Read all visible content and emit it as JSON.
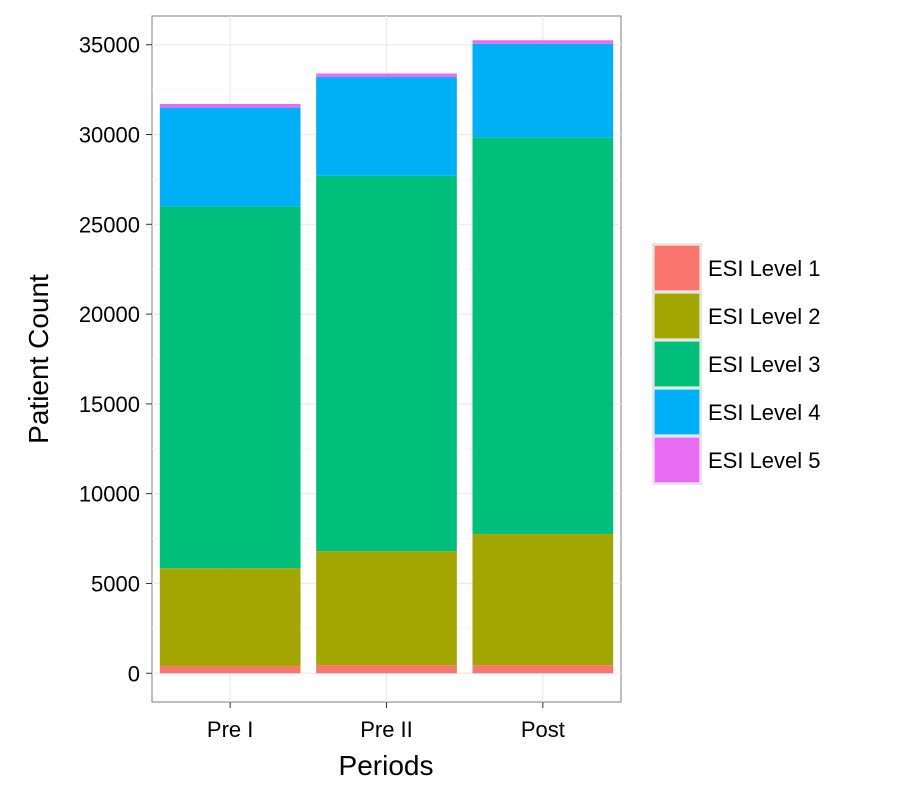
{
  "chart_data": {
    "type": "bar",
    "stacked": true,
    "title": "",
    "xlabel": "Periods",
    "ylabel": "Patient Count",
    "categories": [
      "Pre I",
      "Pre II",
      "Post"
    ],
    "ylim": [
      -1600,
      36600
    ],
    "yticks": [
      0,
      5000,
      10000,
      15000,
      20000,
      25000,
      30000,
      35000
    ],
    "grid": true,
    "legend_position": "right",
    "series": [
      {
        "name": "ESI Level 1",
        "color": "#F8766D",
        "values": [
          400,
          450,
          450
        ]
      },
      {
        "name": "ESI Level 2",
        "color": "#A3A500",
        "values": [
          5450,
          6350,
          7300
        ]
      },
      {
        "name": "ESI Level 3",
        "color": "#00BF7D",
        "values": [
          20150,
          20900,
          22100
        ]
      },
      {
        "name": "ESI Level 4",
        "color": "#00B0F6",
        "values": [
          5500,
          5500,
          5200
        ]
      },
      {
        "name": "ESI Level 5",
        "color": "#E76BF3",
        "values": [
          200,
          200,
          200
        ]
      }
    ]
  }
}
